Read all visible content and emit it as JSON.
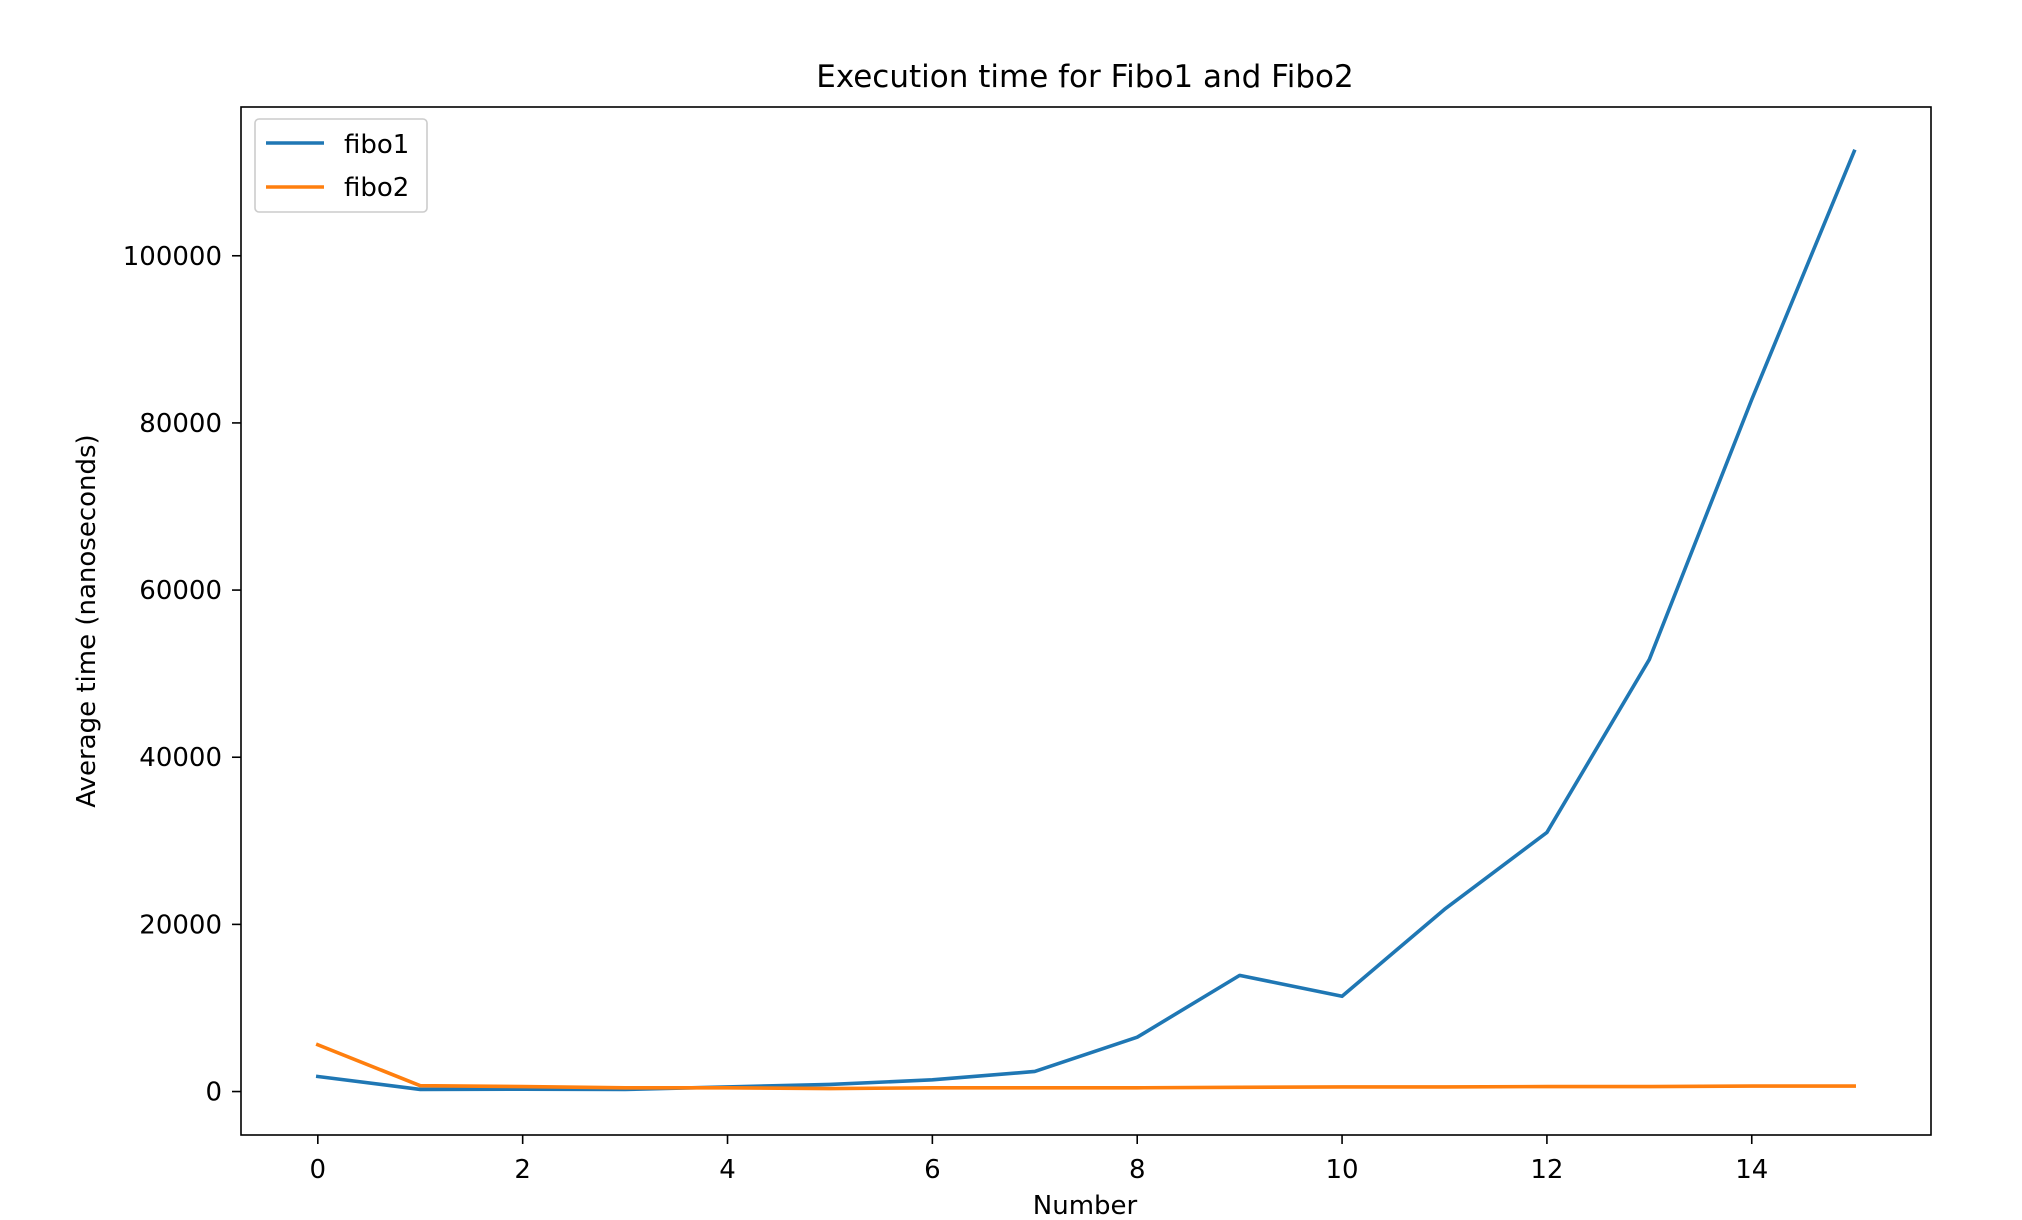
{
  "chart_data": {
    "type": "line",
    "title": "Execution time for Fibo1 and Fibo2",
    "xlabel": "Number",
    "ylabel": "Average time (nanoseconds)",
    "xlim": [
      -0.75,
      15.75
    ],
    "ylim": [
      -5200,
      117800
    ],
    "xticks": [
      0,
      2,
      4,
      6,
      8,
      10,
      12,
      14
    ],
    "yticks": [
      0,
      20000,
      40000,
      60000,
      80000,
      100000
    ],
    "x": [
      0,
      1,
      2,
      3,
      4,
      5,
      6,
      7,
      8,
      9,
      10,
      11,
      12,
      13,
      14,
      15
    ],
    "series": [
      {
        "name": "fibo1",
        "color": "#1f77b4",
        "values": [
          1800,
          250,
          280,
          250,
          550,
          850,
          1400,
          2400,
          6500,
          13900,
          11400,
          21800,
          31000,
          51700,
          82800,
          112500
        ]
      },
      {
        "name": "fibo2",
        "color": "#ff7f0e",
        "values": [
          5600,
          700,
          600,
          450,
          450,
          350,
          450,
          450,
          450,
          500,
          550,
          550,
          600,
          600,
          650,
          650
        ]
      }
    ],
    "legend_position": "top-left",
    "grid": false
  }
}
